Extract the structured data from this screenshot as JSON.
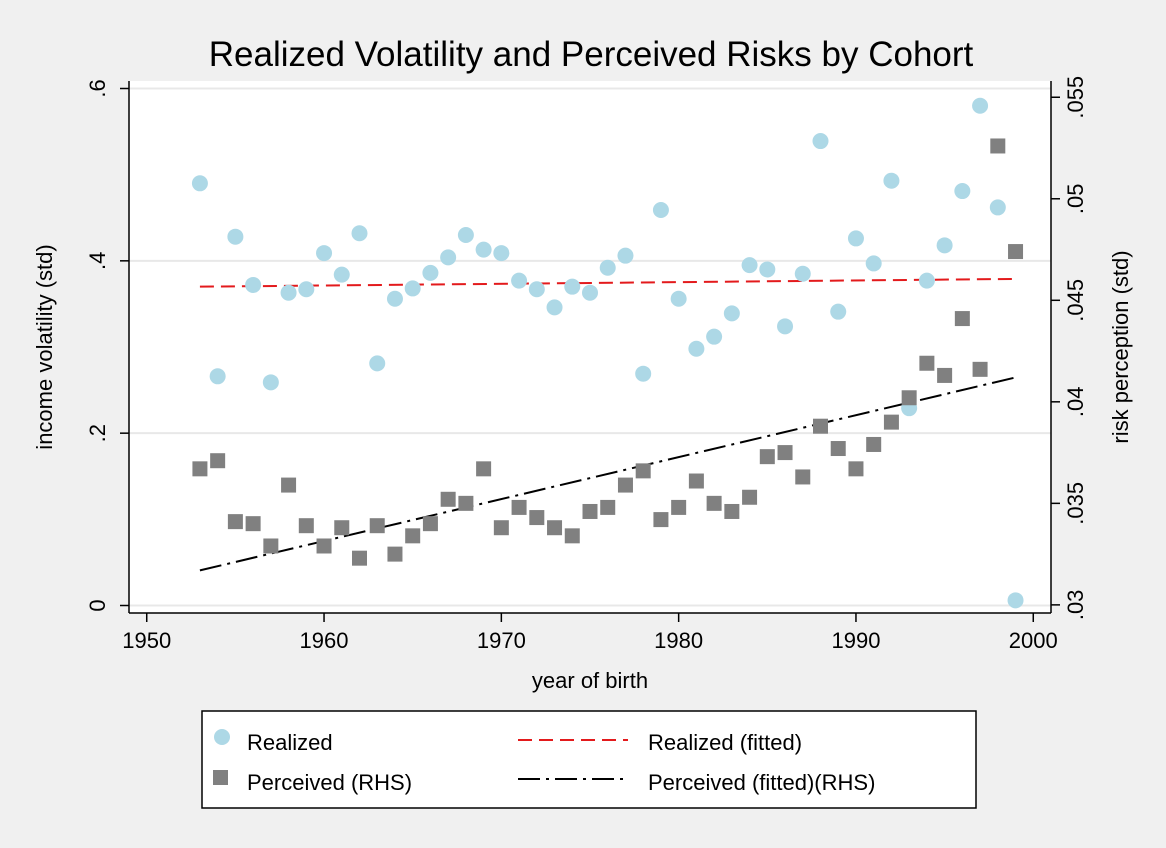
{
  "chart_data": {
    "type": "scatter",
    "title": "Realized Volatility and Perceived Risks by Cohort",
    "xlabel": "year of birth",
    "ylabel": "income volatility (std)",
    "y2label": "risk perception (std)",
    "xlim": [
      1949,
      2001
    ],
    "ylim": [
      -0.0087,
      0.6087
    ],
    "y2lim": [
      0.0296,
      0.0558
    ],
    "xticks": [
      1950,
      1960,
      1970,
      1980,
      1990,
      2000
    ],
    "xtick_labels": [
      "1950",
      "1960",
      "1970",
      "1980",
      "1990",
      "2000"
    ],
    "yticks": [
      0,
      0.2,
      0.4,
      0.6
    ],
    "ytick_labels": [
      "0",
      ".2",
      ".4",
      ".6"
    ],
    "y2ticks": [
      0.03,
      0.035,
      0.04,
      0.045,
      0.05,
      0.055
    ],
    "y2tick_labels": [
      ".03",
      ".035",
      ".04",
      ".045",
      ".05",
      ".055"
    ],
    "grid": true,
    "legend_position": "bottom",
    "colors": {
      "realized": "#add8e6",
      "perceived": "#808080",
      "realized_fit": "#e31a1c",
      "perceived_fit": "#000000",
      "plot_bg": "#ffffff",
      "page_bg": "#f0f0f0",
      "grid": "#e8e8e8"
    },
    "series": [
      {
        "name": "Realized",
        "axis": "left",
        "kind": "points",
        "marker": "circle",
        "x": [
          1953,
          1954,
          1955,
          1956,
          1957,
          1958,
          1959,
          1960,
          1961,
          1962,
          1963,
          1964,
          1965,
          1966,
          1967,
          1968,
          1969,
          1970,
          1971,
          1972,
          1973,
          1974,
          1975,
          1976,
          1977,
          1978,
          1979,
          1980,
          1981,
          1982,
          1983,
          1984,
          1985,
          1986,
          1987,
          1988,
          1989,
          1990,
          1991,
          1992,
          1993,
          1994,
          1995,
          1996,
          1997,
          1998,
          1999
        ],
        "y": [
          0.49,
          0.266,
          0.428,
          0.372,
          0.259,
          0.363,
          0.367,
          0.409,
          0.384,
          0.432,
          0.281,
          0.356,
          0.368,
          0.386,
          0.404,
          0.43,
          0.413,
          0.409,
          0.377,
          0.367,
          0.346,
          0.37,
          0.363,
          0.392,
          0.406,
          0.269,
          0.459,
          0.356,
          0.298,
          0.312,
          0.339,
          0.395,
          0.39,
          0.324,
          0.385,
          0.539,
          0.341,
          0.426,
          0.397,
          0.493,
          0.229,
          0.377,
          0.418,
          0.481,
          0.58,
          0.462,
          0.006
        ]
      },
      {
        "name": "Perceived (RHS)",
        "axis": "right",
        "kind": "points",
        "marker": "square",
        "x": [
          1953,
          1954,
          1955,
          1956,
          1957,
          1958,
          1959,
          1960,
          1961,
          1962,
          1963,
          1964,
          1965,
          1966,
          1967,
          1968,
          1969,
          1970,
          1971,
          1972,
          1973,
          1974,
          1975,
          1976,
          1977,
          1978,
          1979,
          1980,
          1981,
          1982,
          1983,
          1984,
          1985,
          1986,
          1987,
          1988,
          1989,
          1990,
          1991,
          1992,
          1993,
          1994,
          1995,
          1996,
          1997,
          1998,
          1999
        ],
        "y": [
          0.0367,
          0.0371,
          0.0341,
          0.034,
          0.0329,
          0.0359,
          0.0339,
          0.0329,
          0.0338,
          0.0323,
          0.0339,
          0.0325,
          0.0334,
          0.034,
          0.0352,
          0.035,
          0.0367,
          0.0338,
          0.0348,
          0.0343,
          0.0338,
          0.0334,
          0.0346,
          0.0348,
          0.0359,
          0.0366,
          0.0342,
          0.0348,
          0.0361,
          0.035,
          0.0346,
          0.0353,
          0.0373,
          0.0375,
          0.0363,
          0.0388,
          0.0377,
          0.0367,
          0.0379,
          0.039,
          0.0402,
          0.0419,
          0.0413,
          0.0441,
          0.0416,
          0.0526,
          0.0474
        ]
      },
      {
        "name": "Realized (fitted)",
        "axis": "left",
        "kind": "line",
        "style": "dashed",
        "x": [
          1953,
          1999
        ],
        "y": [
          0.37,
          0.379
        ]
      },
      {
        "name": "Perceived (fitted)(RHS)",
        "axis": "right",
        "kind": "line",
        "style": "dashdot",
        "x": [
          1953,
          1999
        ],
        "y": [
          0.0317,
          0.0412
        ]
      }
    ]
  }
}
